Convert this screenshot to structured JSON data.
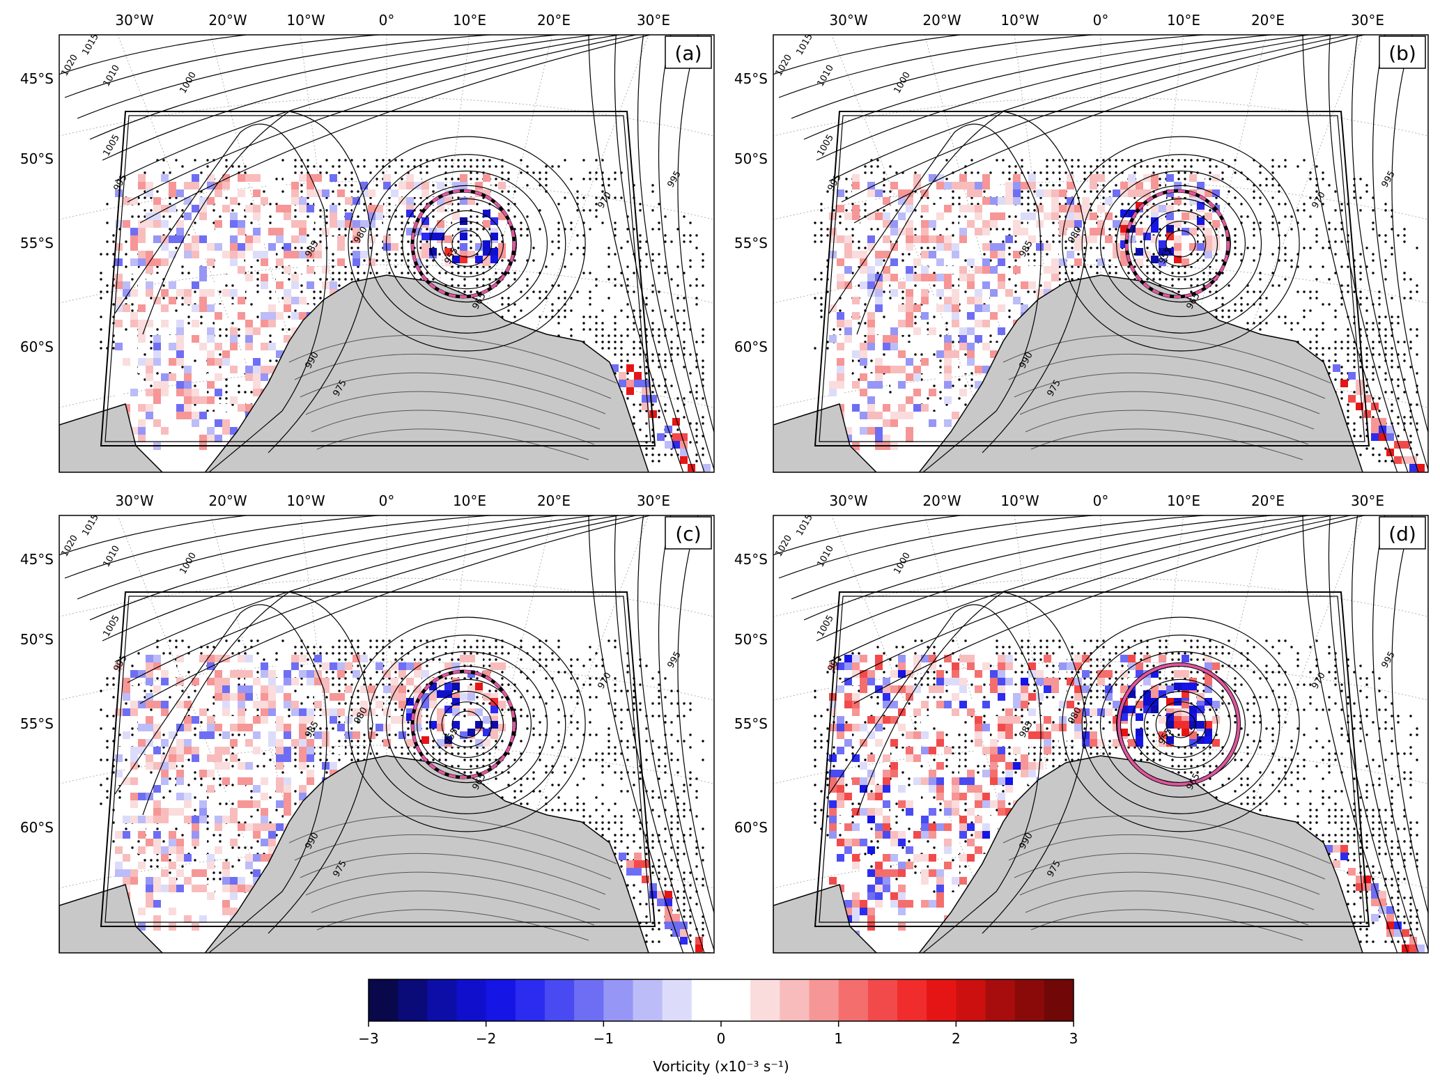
{
  "figure": {
    "lon_labels": [
      "30°W",
      "20°W",
      "10°W",
      "0°",
      "10°E",
      "20°E",
      "30°E"
    ],
    "lat_labels": [
      "45°S",
      "50°S",
      "55°S",
      "60°S"
    ],
    "land_color": "#c8c8c8",
    "circle_color": "#e0569f"
  },
  "panels": [
    {
      "id": "a",
      "label": "(a)",
      "circle_style": "dashed"
    },
    {
      "id": "b",
      "label": "(b)",
      "circle_style": "dashed"
    },
    {
      "id": "c",
      "label": "(c)",
      "circle_style": "dashed"
    },
    {
      "id": "d",
      "label": "(d)",
      "circle_style": "solid"
    }
  ],
  "isobar_labels": [
    "1020",
    "1015",
    "1010",
    "1005",
    "1000",
    "995",
    "990",
    "985",
    "980",
    "975",
    "970",
    "960",
    "955",
    "965"
  ],
  "colorbar": {
    "label": "Vorticity (x10⁻³  s⁻¹)",
    "ticks": [
      "−3",
      "−2",
      "−1",
      "0",
      "1",
      "2",
      "3"
    ],
    "colors": [
      "#08084a",
      "#0a0a78",
      "#0d0da8",
      "#1010cc",
      "#1515e6",
      "#2c2cf0",
      "#4a4af2",
      "#6e6ef4",
      "#9696f6",
      "#bcbcf8",
      "#dcdcfa",
      "#ffffff",
      "#ffffff",
      "#fadcdc",
      "#f8bcbc",
      "#f69696",
      "#f46e6e",
      "#f24a4a",
      "#f02c2c",
      "#e61515",
      "#cc1010",
      "#a80d0d",
      "#8a0a0a",
      "#700808"
    ]
  }
}
